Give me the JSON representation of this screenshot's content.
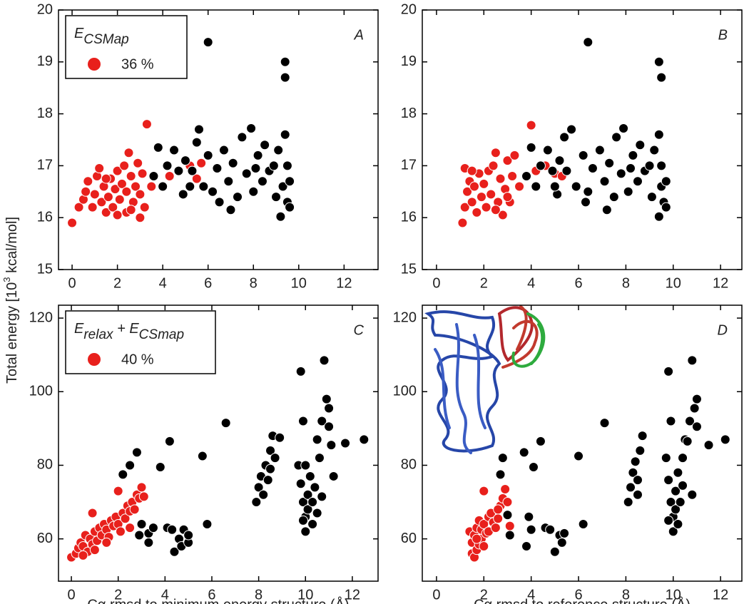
{
  "y_label": {
    "before": "Total energy [10",
    "sup": "3",
    "after": " kcal/mol]"
  },
  "chart_data": [
    {
      "type": "scatter",
      "panel_label": "A",
      "legend_title": [
        {
          "text": "E",
          "sub": "CSMap"
        }
      ],
      "xlim": [
        -0.6,
        13.5
      ],
      "xticks": [
        0,
        2,
        4,
        6,
        8,
        10,
        12
      ],
      "ylim": [
        15,
        20
      ],
      "yticks": [
        15,
        16,
        17,
        18,
        19,
        20
      ],
      "series": [
        {
          "name": "36 %",
          "color": "#e8201c",
          "x": [
            0,
            0.3,
            0.5,
            0.6,
            0.7,
            0.9,
            1.0,
            1.1,
            1.2,
            1.3,
            1.4,
            1.5,
            1.6,
            1.7,
            1.8,
            1.9,
            2.0,
            2.0,
            2.1,
            2.2,
            2.3,
            2.4,
            2.4,
            2.5,
            2.6,
            2.7,
            2.8,
            2.9,
            3.0,
            3.0,
            3.1,
            3.2,
            3.3,
            3.5,
            4.3,
            5.2,
            5.5,
            5.7,
            1.5,
            2.6
          ],
          "values": [
            15.9,
            16.2,
            16.35,
            16.5,
            16.7,
            16.2,
            16.45,
            16.8,
            16.95,
            16.3,
            16.6,
            16.1,
            16.4,
            16.75,
            16.2,
            16.55,
            16.05,
            16.9,
            16.35,
            16.65,
            17.0,
            16.1,
            16.5,
            17.25,
            16.8,
            16.3,
            16.6,
            17.05,
            16.0,
            16.45,
            16.85,
            16.2,
            17.8,
            16.6,
            16.8,
            17.0,
            16.75,
            17.05,
            16.75,
            16.15
          ]
        },
        {
          "color": "#000000",
          "x": [
            3.6,
            3.8,
            4.0,
            4.2,
            4.5,
            4.7,
            4.9,
            5.0,
            5.3,
            5.5,
            5.6,
            5.8,
            6.0,
            6.0,
            6.2,
            6.4,
            6.5,
            6.7,
            6.9,
            7.1,
            7.3,
            7.5,
            7.7,
            7.9,
            8.0,
            8.2,
            8.4,
            8.5,
            8.7,
            8.9,
            9.0,
            9.1,
            9.2,
            9.3,
            9.4,
            9.4,
            9.4,
            9.5,
            9.5,
            9.6,
            9.6,
            7.0,
            8.1,
            5.2
          ],
          "values": [
            16.8,
            17.35,
            16.6,
            17.0,
            17.3,
            16.9,
            16.45,
            17.1,
            16.9,
            17.45,
            17.7,
            16.6,
            19.38,
            17.2,
            16.5,
            16.95,
            16.3,
            17.3,
            16.7,
            17.05,
            16.4,
            17.55,
            16.85,
            17.72,
            16.5,
            17.2,
            16.7,
            17.4,
            16.9,
            17.0,
            16.4,
            17.3,
            16.02,
            16.6,
            19.0,
            18.7,
            17.6,
            16.3,
            17.0,
            16.7,
            16.2,
            16.15,
            16.95,
            16.6
          ]
        }
      ]
    },
    {
      "type": "scatter",
      "panel_label": "B",
      "xlim": [
        -0.6,
        12.9
      ],
      "xticks": [
        0,
        2,
        4,
        6,
        8,
        10,
        12
      ],
      "ylim": [
        15,
        20
      ],
      "yticks": [
        15,
        16,
        17,
        18,
        19,
        20
      ],
      "series": [
        {
          "color": "#e8201c",
          "x": [
            1.1,
            1.2,
            1.2,
            1.3,
            1.4,
            1.5,
            1.6,
            1.7,
            1.8,
            1.9,
            2.0,
            2.1,
            2.2,
            2.3,
            2.4,
            2.5,
            2.6,
            2.7,
            2.8,
            2.9,
            3.0,
            3.1,
            3.2,
            3.3,
            3.5,
            3.8,
            4.0,
            4.2,
            4.6,
            5.0,
            5.3,
            1.5,
            2.5,
            3.0
          ],
          "values": [
            15.9,
            16.95,
            16.2,
            16.5,
            16.7,
            16.3,
            16.6,
            16.1,
            16.85,
            16.4,
            16.65,
            16.2,
            16.9,
            16.45,
            17.0,
            17.25,
            16.3,
            16.75,
            16.05,
            16.55,
            17.1,
            16.3,
            16.8,
            17.2,
            16.6,
            16.8,
            17.78,
            16.9,
            17.0,
            16.85,
            16.8,
            16.9,
            16.15,
            16.4
          ]
        },
        {
          "color": "#000000",
          "x": [
            3.8,
            4.0,
            4.2,
            4.4,
            4.7,
            4.9,
            5.1,
            5.2,
            5.5,
            5.4,
            5.7,
            5.9,
            6.4,
            6.2,
            6.4,
            6.6,
            6.3,
            6.9,
            7.1,
            7.3,
            7.5,
            7.6,
            7.8,
            7.9,
            8.1,
            8.3,
            8.5,
            8.6,
            8.8,
            9.0,
            9.1,
            9.2,
            9.4,
            9.5,
            9.4,
            9.5,
            9.4,
            9.6,
            9.5,
            9.7,
            9.7,
            7.2,
            8.2,
            5.0
          ],
          "values": [
            16.8,
            17.35,
            16.6,
            17.0,
            17.3,
            16.9,
            16.45,
            17.1,
            16.9,
            17.55,
            17.7,
            16.6,
            19.38,
            17.2,
            16.5,
            16.95,
            16.3,
            17.3,
            16.7,
            17.05,
            16.4,
            17.55,
            16.85,
            17.72,
            16.5,
            17.2,
            16.7,
            17.4,
            16.9,
            17.0,
            16.4,
            17.3,
            16.02,
            16.6,
            19.0,
            18.7,
            17.6,
            16.3,
            17.0,
            16.7,
            16.2,
            16.15,
            16.95,
            16.6
          ]
        }
      ]
    },
    {
      "type": "scatter",
      "panel_label": "C",
      "legend_title": [
        {
          "text": "E",
          "sub": "relax"
        },
        {
          "text": " + E",
          "sub": "CSmap"
        }
      ],
      "x_label": "Cα rmsd to minimum energy structure (Å)",
      "xlim": [
        -0.55,
        13.1
      ],
      "xticks": [
        0,
        2,
        4,
        6,
        8,
        10,
        12
      ],
      "ylim": [
        48.5,
        123.5
      ],
      "yticks": [
        60,
        80,
        100,
        120
      ],
      "series": [
        {
          "name": "40 %",
          "color": "#e8201c",
          "x": [
            0,
            0.2,
            0.3,
            0.4,
            0.5,
            0.6,
            0.7,
            0.8,
            0.9,
            0.9,
            1.0,
            1.1,
            1.2,
            1.3,
            1.4,
            1.5,
            1.6,
            1.7,
            1.8,
            1.9,
            2.0,
            2.0,
            2.1,
            2.2,
            2.3,
            2.4,
            2.5,
            2.6,
            2.7,
            2.8,
            2.9,
            3.0,
            3.1,
            0.5,
            1.0,
            1.5,
            2.5
          ],
          "values": [
            55,
            56,
            57.5,
            59,
            58,
            61,
            56.5,
            60,
            67,
            58.5,
            62,
            59.5,
            63,
            61,
            64,
            62.5,
            60.5,
            65,
            63.5,
            66,
            64,
            73,
            62,
            67,
            65.5,
            69,
            67.5,
            70,
            68,
            72,
            71,
            74,
            71.5,
            55.5,
            57,
            59,
            63
          ]
        },
        {
          "color": "#000000",
          "x": [
            2.2,
            2.5,
            2.8,
            2.9,
            3.0,
            3.3,
            3.3,
            3.5,
            3.8,
            4.2,
            4.1,
            4.3,
            4.4,
            4.6,
            4.7,
            4.8,
            5.0,
            5.0,
            5.6,
            5.8,
            6.6,
            7.9,
            8.0,
            8.1,
            8.2,
            8.3,
            8.4,
            8.5,
            8.6,
            8.5,
            8.7,
            9.8,
            9.9,
            9.7,
            9.8,
            9.9,
            10.0,
            10.0,
            10.1,
            10.1,
            10.2,
            10.3,
            10.3,
            10.4,
            10.5,
            10.6,
            10.7,
            10.8,
            10.9,
            11.0,
            11.2,
            11.7,
            12.5,
            9.9,
            10.0,
            10.5,
            11.0,
            10.7,
            11.1,
            8.9
          ],
          "values": [
            77.5,
            80,
            83.5,
            61,
            64,
            59,
            61.5,
            63,
            79.5,
            86.5,
            63,
            62.5,
            56.5,
            60,
            58,
            62.5,
            59,
            61,
            82.5,
            64,
            91.5,
            70,
            74,
            77,
            72,
            80,
            76,
            84,
            88,
            79,
            82,
            105.5,
            92,
            80,
            75,
            70,
            66,
            62,
            68,
            72,
            77,
            64,
            70,
            74,
            87,
            82,
            92,
            108.5,
            98,
            95.5,
            77,
            86,
            87,
            65,
            80,
            67,
            90.5,
            71.5,
            85.5,
            87.5
          ]
        }
      ]
    },
    {
      "type": "scatter",
      "panel_label": "D",
      "x_label": "Cα rmsd to reference structure (Å)",
      "xlim": [
        -0.6,
        12.9
      ],
      "xticks": [
        0,
        2,
        4,
        6,
        8,
        10,
        12
      ],
      "ylim": [
        48.5,
        123.5
      ],
      "yticks": [
        60,
        80,
        100,
        120
      ],
      "series": [
        {
          "color": "#e8201c",
          "x": [
            1.4,
            1.5,
            1.5,
            1.6,
            1.6,
            1.7,
            1.7,
            1.8,
            1.8,
            1.9,
            1.9,
            2.0,
            2.0,
            2.1,
            2.2,
            2.2,
            2.3,
            2.4,
            2.5,
            2.6,
            2.7,
            2.8,
            2.9,
            3.0,
            3.1,
            1.7,
            2.0,
            2.6
          ],
          "values": [
            62,
            56,
            59,
            55,
            61,
            57,
            63,
            58.5,
            65,
            60,
            62.5,
            73,
            64,
            61.5,
            66,
            62,
            67,
            64.5,
            63,
            65.5,
            69,
            71,
            73.5,
            70,
            63.5,
            60,
            58,
            68
          ]
        },
        {
          "color": "#000000",
          "x": [
            2.7,
            2.8,
            3.0,
            3.1,
            3.7,
            3.8,
            3.9,
            4.0,
            4.1,
            4.4,
            4.6,
            4.8,
            5.0,
            5.2,
            5.3,
            5.4,
            6.0,
            6.2,
            7.1,
            8.1,
            8.2,
            8.3,
            8.4,
            8.5,
            8.6,
            8.7,
            8.5,
            9.8,
            9.9,
            9.7,
            9.8,
            9.9,
            10.0,
            10.0,
            10.1,
            10.1,
            10.2,
            10.2,
            10.3,
            10.4,
            10.5,
            10.4,
            10.7,
            10.8,
            11.0,
            10.9,
            10.8,
            11.5,
            12.2,
            11.0,
            9.8,
            10.6
          ],
          "values": [
            77.5,
            82,
            66.5,
            61,
            83.5,
            58,
            66,
            62.5,
            79.5,
            86.5,
            63,
            62.5,
            56.5,
            61,
            59,
            61.5,
            82.5,
            64,
            91.5,
            70,
            74,
            78,
            81,
            76,
            84,
            88,
            72,
            105.5,
            92,
            82,
            76,
            70,
            66,
            62,
            68,
            73,
            78,
            64,
            70,
            74.5,
            87,
            82,
            92,
            108.5,
            98,
            95.5,
            72,
            85.5,
            87,
            90.5,
            65,
            86.5
          ]
        }
      ]
    }
  ]
}
